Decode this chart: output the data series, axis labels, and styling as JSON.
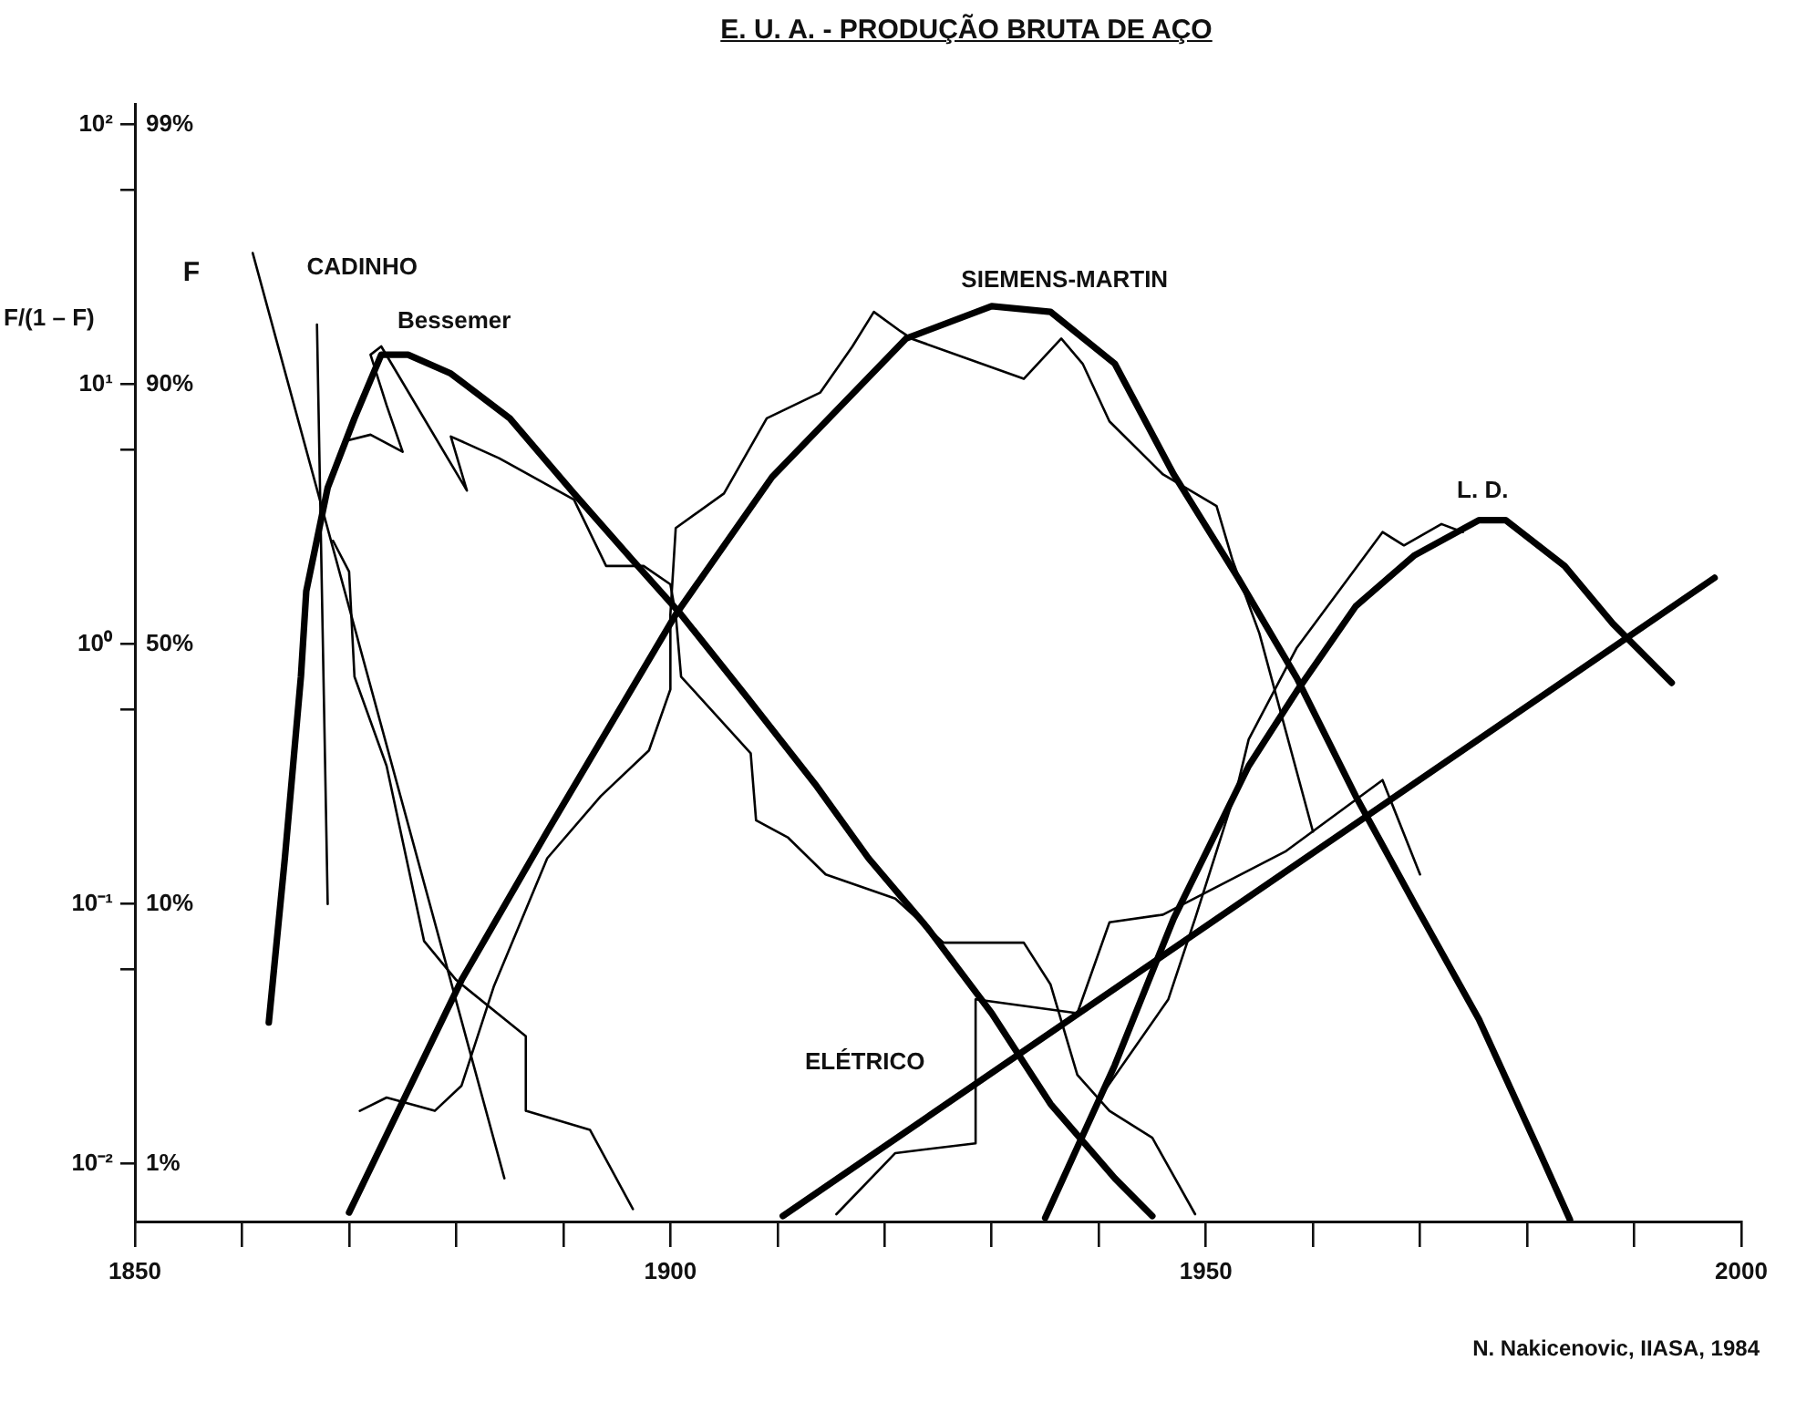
{
  "chart_data": {
    "type": "line",
    "title": "E. U. A. - PRODUÇÃO BRUTA DE AÇO",
    "ylabel": "F/(1 – F)",
    "log": true,
    "grid": false,
    "legend": false,
    "xlim": [
      1850,
      2000
    ],
    "xticks": [
      1850,
      {
        "value": 1860,
        "label": null
      },
      {
        "value": 1870,
        "label": null
      },
      {
        "value": 1880,
        "label": null
      },
      {
        "value": 1890,
        "label": null
      },
      1900,
      {
        "value": 1910,
        "label": null
      },
      {
        "value": 1920,
        "label": null
      },
      {
        "value": 1930,
        "label": null
      },
      {
        "value": 1940,
        "label": null
      },
      1950,
      {
        "value": 1960,
        "label": null
      },
      {
        "value": 1970,
        "label": null
      },
      {
        "value": 1980,
        "label": null
      },
      {
        "value": 1990,
        "label": null
      },
      2000
    ],
    "ylim": [
      0.006,
      120
    ],
    "yticks": [
      {
        "value": 0.01,
        "label": "10⁻²"
      },
      {
        "value": 0.056,
        "label": null
      },
      {
        "value": 0.1,
        "label": "10⁻¹"
      },
      {
        "value": 0.56,
        "label": null
      },
      {
        "value": 1,
        "label": "10⁰"
      },
      {
        "value": 5.6,
        "label": null
      },
      {
        "value": 10,
        "label": "10¹"
      },
      {
        "value": 56,
        "label": null
      },
      {
        "value": 100,
        "label": "10²"
      }
    ],
    "series": [
      {
        "name": "Bessemer",
        "color": "#000000",
        "x": [
          1862.5,
          1864,
          1865.5,
          1866,
          1868,
          1870.5,
          1873,
          1875.5,
          1879.5,
          1885,
          1891,
          1896.5,
          1901,
          1907.5,
          1913.5,
          1918.5,
          1924,
          1930,
          1935.5,
          1941.5,
          1945
        ],
        "values": [
          0.035,
          0.15,
          0.75,
          1.6,
          4.0,
          7.4,
          13,
          13,
          11,
          7.4,
          3.8,
          2.1,
          1.3,
          0.6,
          0.29,
          0.15,
          0.081,
          0.038,
          0.017,
          0.0088,
          0.0063
        ]
      },
      {
        "name": "SIEMENS-MARTIN",
        "color": "#000000",
        "x": [
          1870,
          1880.5,
          1888.5,
          1900.5,
          1909.5,
          1922,
          1930,
          1935.5,
          1941.5,
          1947,
          1953,
          1958.5,
          1964,
          1969.5,
          1975.5,
          1981,
          1984
        ],
        "values": [
          0.0065,
          0.051,
          0.19,
          1.3,
          4.4,
          15,
          20,
          19,
          12,
          4.5,
          1.8,
          0.74,
          0.26,
          0.1,
          0.036,
          0.0115,
          0.0061
        ]
      },
      {
        "name": "L. D.",
        "color": "#000000",
        "x": [
          1935,
          1941.5,
          1947,
          1954,
          1958.5,
          1964,
          1969.5,
          1975.5,
          1978,
          1983.5,
          1988,
          1993.5
        ],
        "values": [
          0.0062,
          0.024,
          0.088,
          0.34,
          0.66,
          1.4,
          2.2,
          3.0,
          3.0,
          2.0,
          1.2,
          0.71
        ]
      },
      {
        "name": "ELÉTRICO",
        "color": "#000000",
        "x": [
          1910.5,
          1997.5
        ],
        "values": [
          0.0063,
          1.8
        ]
      },
      {
        "name": "CADINHO",
        "color": "#000000",
        "x": [
          1861,
          1884.5
        ],
        "values": [
          32,
          0.0088
        ]
      },
      {
        "color": "#000000",
        "x": [
          1867,
          1868
        ],
        "values": [
          17,
          0.1
        ]
      },
      {
        "color": "#000000",
        "x": [
          1868.5,
          1870,
          1870.5,
          1873.5,
          1877,
          1880,
          1886.5,
          1886.5,
          1892.5,
          1896.5
        ],
        "values": [
          2.5,
          1.9,
          0.75,
          0.34,
          0.072,
          0.051,
          0.031,
          0.016,
          0.0135,
          0.0067
        ]
      },
      {
        "color": "#000000",
        "x": [
          1870,
          1872,
          1875,
          1873.5,
          1872,
          1873,
          1881,
          1879.5,
          1884,
          1891,
          1894,
          1897.5,
          1900,
          1900.5,
          1901,
          1907.5,
          1908,
          1911,
          1914.5,
          1921,
          1925.5,
          1933,
          1935.5,
          1938,
          1941,
          1945,
          1949
        ],
        "values": [
          6.1,
          6.4,
          5.5,
          8.3,
          13,
          14,
          3.9,
          6.3,
          5.2,
          3.6,
          2.0,
          2.0,
          1.7,
          1.3,
          0.75,
          0.38,
          0.21,
          0.18,
          0.13,
          0.105,
          0.071,
          0.071,
          0.049,
          0.022,
          0.016,
          0.0126,
          0.0064
        ]
      },
      {
        "color": "#000000",
        "x": [
          1871,
          1873.5,
          1878,
          1880.5,
          1883.5,
          1888.5,
          1893.5,
          1898,
          1900,
          1900,
          1900.5,
          1905,
          1909,
          1914,
          1917,
          1919,
          1921.5,
          1922.5,
          1933,
          1936.5,
          1938.5,
          1941,
          1946,
          1951,
          1952.5,
          1955,
          1960
        ],
        "values": [
          0.016,
          0.018,
          0.016,
          0.02,
          0.048,
          0.15,
          0.26,
          0.39,
          0.67,
          1.3,
          2.8,
          3.8,
          7.4,
          9.3,
          14,
          19,
          16,
          15,
          10.5,
          15,
          12,
          7.2,
          4.5,
          3.4,
          2.1,
          1.1,
          0.19
        ]
      },
      {
        "color": "#000000",
        "x": [
          1940.5,
          1946.5,
          1949,
          1953,
          1954,
          1958.5,
          1966.5,
          1968.5,
          1972,
          1974
        ],
        "values": [
          0.019,
          0.043,
          0.088,
          0.29,
          0.43,
          0.97,
          2.7,
          2.4,
          2.9,
          2.7
        ]
      },
      {
        "color": "#000000",
        "x": [
          1915.5,
          1921,
          1928.5,
          1928.5,
          1938,
          1941,
          1946,
          1957.5,
          1966.5,
          1970
        ],
        "values": [
          0.0064,
          0.011,
          0.012,
          0.043,
          0.038,
          0.085,
          0.091,
          0.16,
          0.3,
          0.13
        ]
      }
    ],
    "annotations": [
      "F",
      "99%",
      "90%",
      "50%",
      "10%",
      "1%",
      "N. Nakicenovic, IIASA, 1984"
    ]
  }
}
